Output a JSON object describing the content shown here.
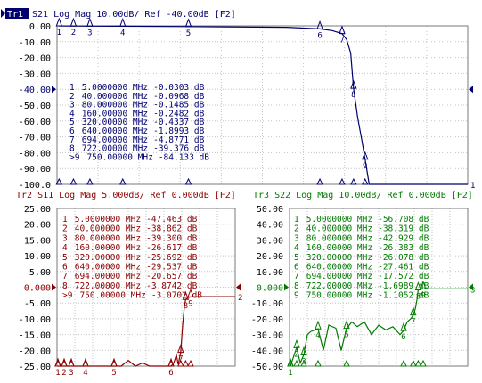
{
  "colors": {
    "tr1": "#00006e",
    "tr2": "#8b0000",
    "tr3": "#007a00",
    "grid": "#c4c4c4",
    "axis": "#000000"
  },
  "chart_data": [
    {
      "id": "tr1",
      "type": "line",
      "tag": "Tr1",
      "title": "S21 Log Mag 10.00dB/ Ref -40.00dB [F2]",
      "ylim": [
        -100,
        0
      ],
      "y_ticks": [
        "0.00",
        "-10.00",
        "-20.00",
        "-30.00",
        "-40.00",
        "-50.00",
        "-60.00",
        "-70.00",
        "-80.00",
        "-90.00",
        "-100.0"
      ],
      "ref_value": -40,
      "end_marker": "1",
      "series": [
        {
          "x_mhz": [
            5,
            80,
            160,
            320,
            560,
            640,
            670,
            694,
            705,
            715,
            722,
            732,
            742,
            750,
            760,
            790,
            850,
            1000
          ],
          "db": [
            -0.03,
            -0.15,
            -0.25,
            -0.43,
            -0.9,
            -1.9,
            -3.0,
            -4.9,
            -8.5,
            -17,
            -39.4,
            -58,
            -72,
            -84.1,
            -100,
            -100,
            -100,
            -100
          ]
        }
      ],
      "markers": [
        {
          "n": "1",
          "freq": "5.0000000 MHz",
          "val": "-0.0303 dB",
          "x_mhz": 5,
          "db": -0.03
        },
        {
          "n": "2",
          "freq": "40.000000 MHz",
          "val": "-0.0968 dB",
          "x_mhz": 40,
          "db": -0.1
        },
        {
          "n": "3",
          "freq": "80.000000 MHz",
          "val": "-0.1485 dB",
          "x_mhz": 80,
          "db": -0.15
        },
        {
          "n": "4",
          "freq": "160.00000 MHz",
          "val": "-0.2482 dB",
          "x_mhz": 160,
          "db": -0.25
        },
        {
          "n": "5",
          "freq": "320.00000 MHz",
          "val": "-0.4337 dB",
          "x_mhz": 320,
          "db": -0.43
        },
        {
          "n": "6",
          "freq": "640.00000 MHz",
          "val": "-1.8993 dB",
          "x_mhz": 640,
          "db": -1.9
        },
        {
          "n": "7",
          "freq": "694.00000 MHz",
          "val": "-4.8771 dB",
          "x_mhz": 694,
          "db": -4.88
        },
        {
          "n": "8",
          "freq": "722.00000 MHz",
          "val": "-39.376 dB",
          "x_mhz": 722,
          "db": -39.38
        },
        {
          "n": ">9",
          "freq": "750.00000 MHz",
          "val": "-84.133 dB",
          "x_mhz": 750,
          "db": -84.13
        }
      ]
    },
    {
      "id": "tr2",
      "type": "line",
      "tag": "Tr2",
      "title": "S11 Log Mag 5.000dB/ Ref 0.000dB [F2]",
      "ylim": [
        -25,
        25
      ],
      "y_ticks": [
        "25.00",
        "20.00",
        "15.00",
        "10.00",
        "5.00",
        "0.000",
        "-5.00",
        "-10.00",
        "-15.00",
        "-20.00",
        "-25.00"
      ],
      "ref_value": 0,
      "end_marker": "2",
      "series": [
        {
          "x_mhz": [
            5,
            40,
            80,
            120,
            160,
            200,
            240,
            280,
            320,
            360,
            400,
            440,
            480,
            520,
            560,
            600,
            620,
            640,
            655,
            670,
            680,
            694,
            705,
            715,
            722,
            735,
            750,
            800,
            900,
            1000
          ],
          "db": [
            -47.5,
            -38.9,
            -39.3,
            -30,
            -26.6,
            -30,
            -25,
            -32,
            -25.7,
            -28,
            -23.2,
            -28,
            -24,
            -33,
            -35,
            -25.2,
            -27,
            -29.5,
            -24,
            -21.5,
            -24.5,
            -20.7,
            -12,
            -6,
            -3.87,
            -3.3,
            -3.07,
            -3.0,
            -3.0,
            -3.0
          ]
        }
      ],
      "markers": [
        {
          "n": "1",
          "freq": "5.0000000 MHz",
          "val": "-47.463 dB",
          "x_mhz": 5,
          "db": -47.46
        },
        {
          "n": "2",
          "freq": "40.000000 MHz",
          "val": "-38.862 dB",
          "x_mhz": 40,
          "db": -38.86
        },
        {
          "n": "3",
          "freq": "80.000000 MHz",
          "val": "-39.300 dB",
          "x_mhz": 80,
          "db": -39.3
        },
        {
          "n": "4",
          "freq": "160.00000 MHz",
          "val": "-26.617 dB",
          "x_mhz": 160,
          "db": -26.62
        },
        {
          "n": "5",
          "freq": "320.00000 MHz",
          "val": "-25.692 dB",
          "x_mhz": 320,
          "db": -25.69
        },
        {
          "n": "6",
          "freq": "640.00000 MHz",
          "val": "-29.537 dB",
          "x_mhz": 640,
          "db": -29.54
        },
        {
          "n": "7",
          "freq": "694.00000 MHz",
          "val": "-20.657 dB",
          "x_mhz": 694,
          "db": -20.66
        },
        {
          "n": "8",
          "freq": "722.00000 MHz",
          "val": "-3.8742 dB",
          "x_mhz": 722,
          "db": -3.87
        },
        {
          "n": ">9",
          "freq": "750.00000 MHz",
          "val": "-3.0702 dB",
          "x_mhz": 750,
          "db": -3.07
        }
      ]
    },
    {
      "id": "tr3",
      "type": "line",
      "tag": "Tr3",
      "title": "S22 Log Mag 10.00dB/ Ref 0.000dB [F2]",
      "ylim": [
        -50,
        50
      ],
      "y_ticks": [
        "50.00",
        "40.00",
        "30.00",
        "20.00",
        "10.00",
        "0.000",
        "-10.00",
        "-20.00",
        "-30.00",
        "-40.00",
        "-50.00"
      ],
      "ref_value": 0,
      "end_marker": "3",
      "series": [
        {
          "x_mhz": [
            5,
            20,
            40,
            60,
            80,
            100,
            120,
            160,
            190,
            220,
            260,
            290,
            320,
            350,
            380,
            420,
            460,
            500,
            540,
            580,
            620,
            640,
            660,
            680,
            694,
            705,
            715,
            722,
            740,
            750,
            800,
            900,
            1000
          ],
          "db": [
            -56.7,
            -45,
            -38.3,
            -48,
            -42.9,
            -30,
            -28,
            -26.4,
            -40,
            -24,
            -26,
            -40,
            -26.1,
            -22,
            -25,
            -22,
            -30,
            -24,
            -27,
            -25,
            -30,
            -27.5,
            -22,
            -20,
            -17.6,
            -14,
            -8,
            -1.7,
            -1.2,
            -1.1,
            -1.1,
            -1.1,
            -1.1
          ]
        }
      ],
      "markers": [
        {
          "n": "1",
          "freq": "5.0000000 MHz",
          "val": "-56.708 dB",
          "x_mhz": 5,
          "db": -56.71
        },
        {
          "n": "2",
          "freq": "40.000000 MHz",
          "val": "-38.319 dB",
          "x_mhz": 40,
          "db": -38.32
        },
        {
          "n": "3",
          "freq": "80.000000 MHz",
          "val": "-42.929 dB",
          "x_mhz": 80,
          "db": -42.93
        },
        {
          "n": "4",
          "freq": "160.00000 MHz",
          "val": "-26.383 dB",
          "x_mhz": 160,
          "db": -26.38
        },
        {
          "n": "5",
          "freq": "320.00000 MHz",
          "val": "-26.078 dB",
          "x_mhz": 320,
          "db": -26.08
        },
        {
          "n": "6",
          "freq": "640.00000 MHz",
          "val": "-27.461 dB",
          "x_mhz": 640,
          "db": -27.46
        },
        {
          "n": "7",
          "freq": "694.00000 MHz",
          "val": "-17.572 dB",
          "x_mhz": 694,
          "db": -17.57
        },
        {
          "n": "8",
          "freq": "722.00000 MHz",
          "val": "-1.6989 dB",
          "x_mhz": 722,
          "db": -1.7
        },
        {
          "n": "9",
          "freq": "750.00000 MHz",
          "val": "-1.1052 dB",
          "x_mhz": 750,
          "db": -1.11
        }
      ]
    }
  ]
}
